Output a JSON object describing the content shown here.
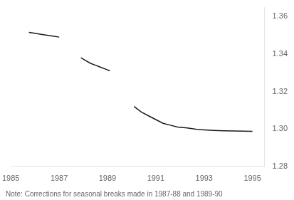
{
  "chart_data": {
    "type": "line",
    "annotation": "Note: Corrections for seasonal breaks made in 1987-88 and 1989-90",
    "xlim": [
      1985,
      1995.5
    ],
    "ylim": [
      1.28,
      1.365
    ],
    "xticks": [
      1985,
      1987,
      1989,
      1991,
      1993,
      1995
    ],
    "yticks": [
      1.28,
      {
        "value": 1.3,
        "label": "1.30"
      },
      1.32,
      1.34,
      1.36
    ],
    "grid": false,
    "legend": false,
    "series": [
      {
        "color": "#1a1a1a",
        "x": [
          1985.75,
          1986.0,
          1986.25,
          1986.5,
          1986.75,
          1987.0
        ],
        "values": [
          1.3515,
          1.351,
          1.3505,
          1.35,
          1.3495,
          1.349
        ]
      },
      {
        "color": "#1a1a1a",
        "x": [
          1987.9,
          1988.1,
          1988.3,
          1988.5,
          1988.7,
          1988.9,
          1989.1
        ],
        "values": [
          1.338,
          1.3365,
          1.335,
          1.334,
          1.333,
          1.332,
          1.331
        ]
      },
      {
        "color": "#1a1a1a",
        "x": [
          1990.1,
          1990.4,
          1990.7,
          1991.0,
          1991.3,
          1991.6,
          1991.9,
          1992.3,
          1992.7,
          1993.0,
          1993.4,
          1993.8,
          1994.2,
          1994.6,
          1995.0
        ],
        "values": [
          1.312,
          1.309,
          1.307,
          1.305,
          1.303,
          1.302,
          1.301,
          1.3005,
          1.2998,
          1.2995,
          1.2992,
          1.299,
          1.2989,
          1.2988,
          1.2987
        ]
      }
    ]
  }
}
